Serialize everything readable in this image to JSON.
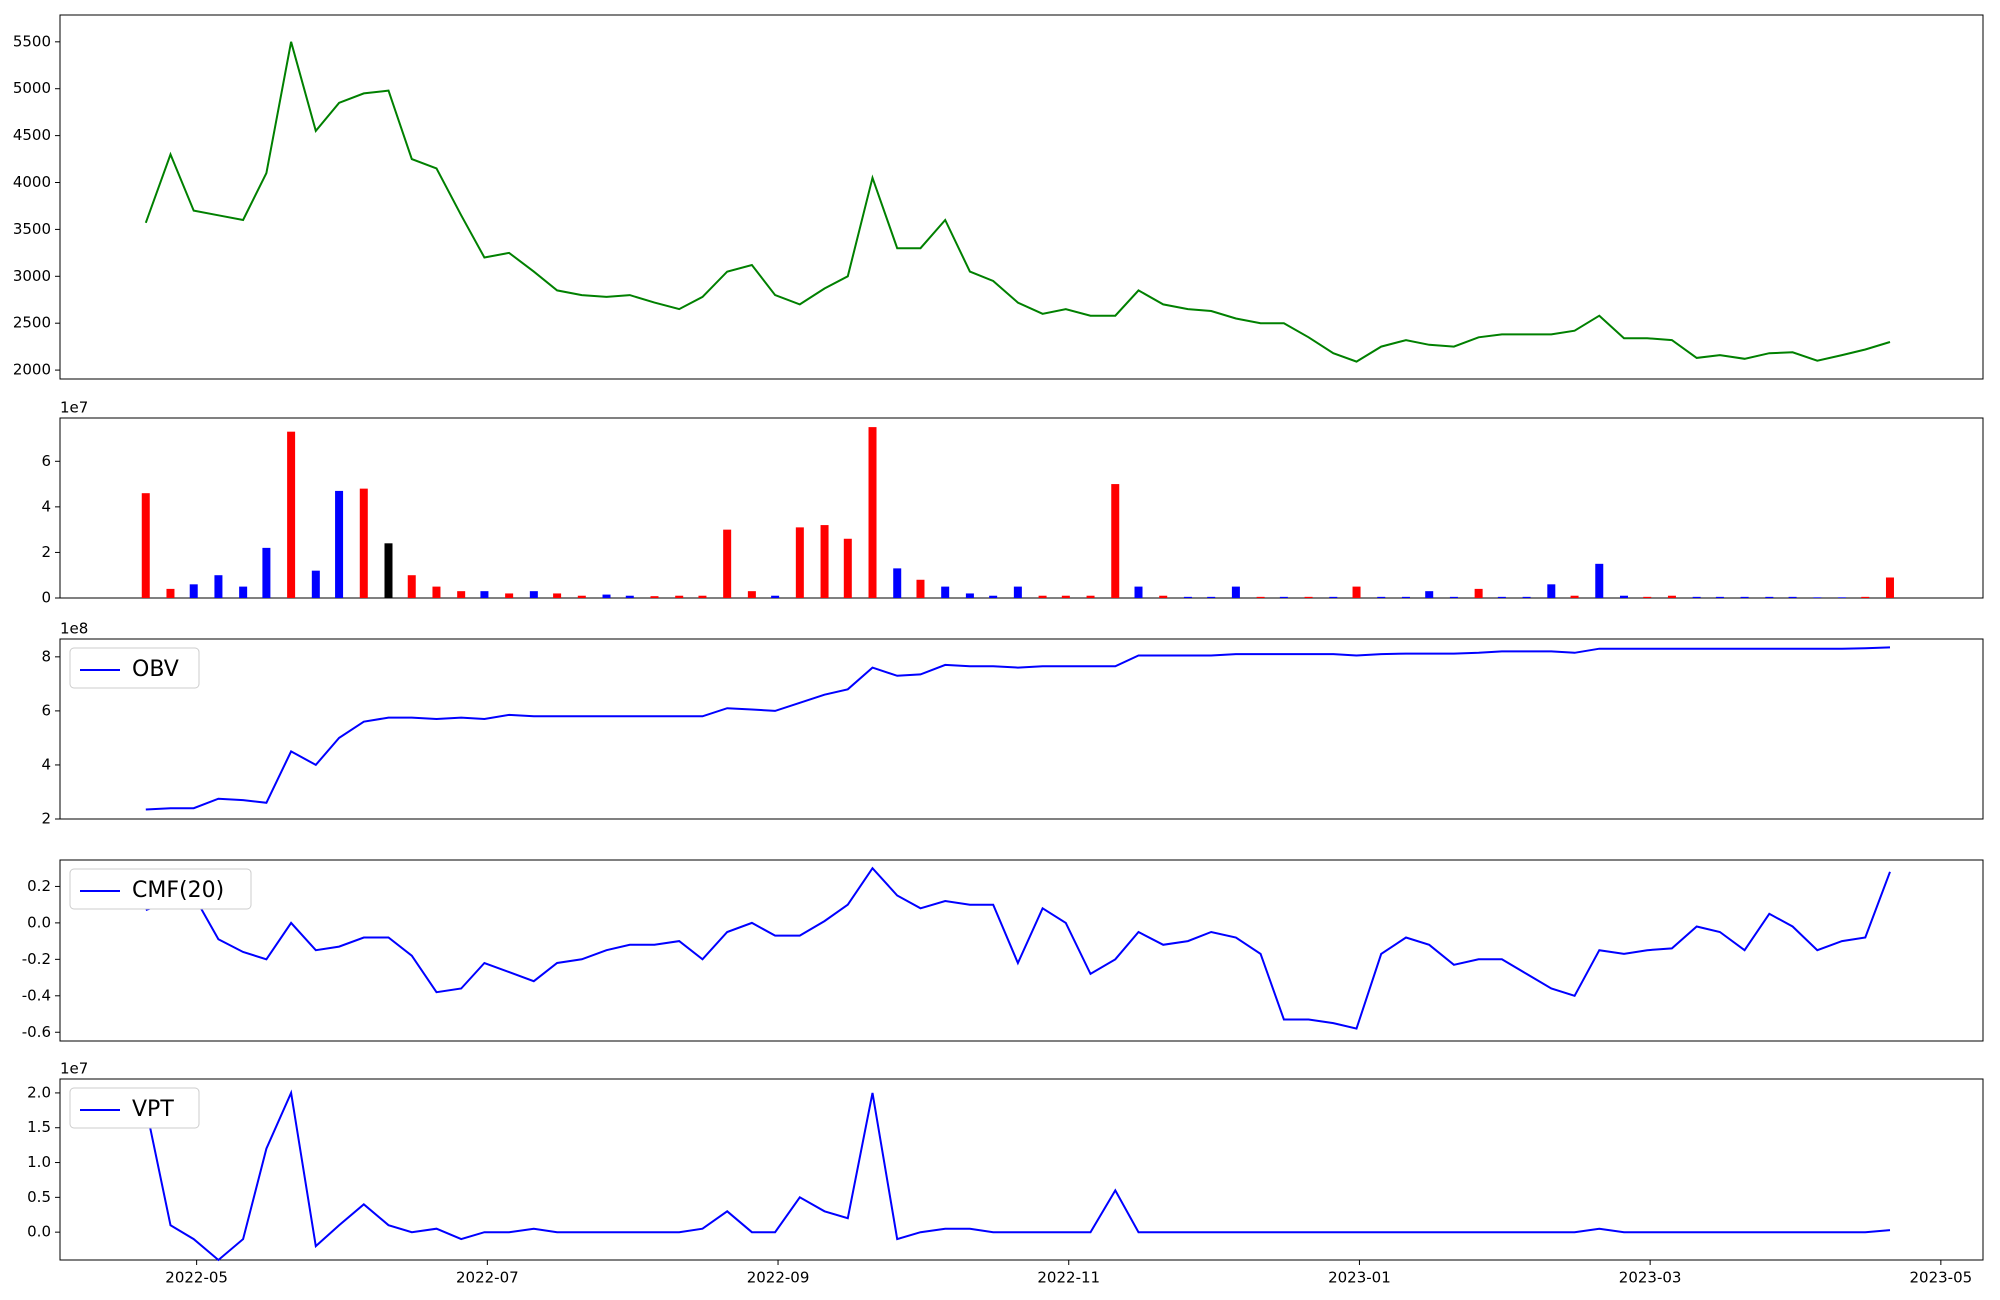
{
  "chart_data": [
    {
      "type": "line",
      "color": "#008000",
      "x": [
        0.65,
        0.82,
        0.98,
        1.15,
        1.32,
        1.48,
        1.65,
        1.82,
        1.98,
        2.15,
        2.32,
        2.48,
        2.65,
        2.82,
        2.98,
        3.15,
        3.32,
        3.48,
        3.65,
        3.82,
        3.98,
        4.15,
        4.32,
        4.48,
        4.65,
        4.82,
        4.98,
        5.15,
        5.32,
        5.48,
        5.65,
        5.82,
        5.98,
        6.15,
        6.32,
        6.48,
        6.65,
        6.82,
        6.98,
        7.15,
        7.32,
        7.48,
        7.65,
        7.82,
        7.98,
        8.15,
        8.32,
        8.48,
        8.65,
        8.82,
        8.98,
        9.15,
        9.32,
        9.48,
        9.65,
        9.82,
        9.98,
        10.15,
        10.32,
        10.48,
        10.65,
        10.82,
        10.98,
        11.15,
        11.32,
        11.48,
        11.65,
        11.82,
        11.98,
        12.15,
        12.32,
        12.48,
        12.65
      ],
      "values": [
        3570,
        4300,
        3700,
        3650,
        3600,
        4100,
        5500,
        4550,
        4850,
        4950,
        4980,
        4250,
        4150,
        3650,
        3200,
        3250,
        3050,
        2850,
        2800,
        2780,
        2800,
        2720,
        2650,
        2780,
        3050,
        3120,
        2800,
        2700,
        2870,
        3000,
        4050,
        3300,
        3300,
        3600,
        3050,
        2950,
        2720,
        2600,
        2650,
        2580,
        2580,
        2850,
        2700,
        2650,
        2630,
        2550,
        2500,
        2500,
        2350,
        2180,
        2090,
        2250,
        2320,
        2270,
        2250,
        2350,
        2380,
        2380,
        2380,
        2420,
        2580,
        2340,
        2340,
        2320,
        2130,
        2160,
        2120,
        2180,
        2190,
        2100,
        2160,
        2220,
        2300
      ],
      "xlim": [
        0.06,
        13.29
      ],
      "ylim": [
        1905,
        5786
      ],
      "yticks": [
        2000,
        2500,
        3000,
        3500,
        4000,
        4500,
        5000,
        5500
      ]
    },
    {
      "type": "bar",
      "y_offset_label": "1e7",
      "x": [
        0.65,
        0.82,
        0.98,
        1.15,
        1.32,
        1.48,
        1.65,
        1.82,
        1.98,
        2.15,
        2.32,
        2.48,
        2.65,
        2.82,
        2.98,
        3.15,
        3.32,
        3.48,
        3.65,
        3.82,
        3.98,
        4.15,
        4.32,
        4.48,
        4.65,
        4.82,
        4.98,
        5.15,
        5.32,
        5.48,
        5.65,
        5.82,
        5.98,
        6.15,
        6.32,
        6.48,
        6.65,
        6.82,
        6.98,
        7.15,
        7.32,
        7.48,
        7.65,
        7.82,
        7.98,
        8.15,
        8.32,
        8.48,
        8.65,
        8.82,
        8.98,
        9.15,
        9.32,
        9.48,
        9.65,
        9.82,
        9.98,
        10.15,
        10.32,
        10.48,
        10.65,
        10.82,
        10.98,
        11.15,
        11.32,
        11.48,
        11.65,
        11.82,
        11.98,
        12.15,
        12.32,
        12.48,
        12.65
      ],
      "values": [
        4.6,
        0.4,
        0.6,
        1.0,
        0.5,
        2.2,
        7.3,
        1.2,
        4.7,
        4.8,
        2.4,
        1.0,
        0.5,
        0.3,
        0.3,
        0.2,
        0.3,
        0.2,
        0.1,
        0.15,
        0.1,
        0.08,
        0.1,
        0.1,
        3.0,
        0.3,
        0.1,
        3.1,
        3.2,
        2.6,
        7.5,
        1.3,
        0.8,
        0.5,
        0.2,
        0.1,
        0.5,
        0.1,
        0.1,
        0.1,
        5.0,
        0.5,
        0.1,
        0.05,
        0.05,
        0.5,
        0.05,
        0.05,
        0.05,
        0.05,
        0.5,
        0.05,
        0.05,
        0.3,
        0.05,
        0.4,
        0.05,
        0.05,
        0.6,
        0.1,
        1.5,
        0.1,
        0.05,
        0.1,
        0.05,
        0.05,
        0.05,
        0.05,
        0.05,
        0.03,
        0.03,
        0.05,
        0.9
      ],
      "colors": [
        "#ff0000",
        "#ff0000",
        "#0000ff",
        "#0000ff",
        "#0000ff",
        "#0000ff",
        "#ff0000",
        "#0000ff",
        "#0000ff",
        "#ff0000",
        "#000000",
        "#ff0000",
        "#ff0000",
        "#ff0000",
        "#0000ff",
        "#ff0000",
        "#0000ff",
        "#ff0000",
        "#ff0000",
        "#0000ff",
        "#0000ff",
        "#ff0000",
        "#ff0000",
        "#ff0000",
        "#ff0000",
        "#ff0000",
        "#0000ff",
        "#ff0000",
        "#ff0000",
        "#ff0000",
        "#ff0000",
        "#0000ff",
        "#ff0000",
        "#0000ff",
        "#0000ff",
        "#0000ff",
        "#0000ff",
        "#ff0000",
        "#ff0000",
        "#ff0000",
        "#ff0000",
        "#0000ff",
        "#ff0000",
        "#0000ff",
        "#0000ff",
        "#0000ff",
        "#ff0000",
        "#0000ff",
        "#ff0000",
        "#0000ff",
        "#ff0000",
        "#0000ff",
        "#0000ff",
        "#0000ff",
        "#0000ff",
        "#ff0000",
        "#0000ff",
        "#0000ff",
        "#0000ff",
        "#ff0000",
        "#0000ff",
        "#0000ff",
        "#ff0000",
        "#ff0000",
        "#0000ff",
        "#0000ff",
        "#0000ff",
        "#0000ff",
        "#0000ff",
        "#0000ff",
        "#0000ff",
        "#ff0000",
        "#ff0000"
      ],
      "xlim": [
        0.06,
        13.29
      ],
      "ylim": [
        0,
        7.9
      ],
      "yticks": [
        0,
        2,
        4,
        6
      ]
    },
    {
      "type": "line",
      "y_offset_label": "1e8",
      "legend": "upper left",
      "x": [
        0.65,
        0.82,
        0.98,
        1.15,
        1.32,
        1.48,
        1.65,
        1.82,
        1.98,
        2.15,
        2.32,
        2.48,
        2.65,
        2.82,
        2.98,
        3.15,
        3.32,
        3.48,
        3.65,
        3.82,
        3.98,
        4.15,
        4.32,
        4.48,
        4.65,
        4.82,
        4.98,
        5.15,
        5.32,
        5.48,
        5.65,
        5.82,
        5.98,
        6.15,
        6.32,
        6.48,
        6.65,
        6.82,
        6.98,
        7.15,
        7.32,
        7.48,
        7.65,
        7.82,
        7.98,
        8.15,
        8.32,
        8.48,
        8.65,
        8.82,
        8.98,
        9.15,
        9.32,
        9.48,
        9.65,
        9.82,
        9.98,
        10.15,
        10.32,
        10.48,
        10.65,
        10.82,
        10.98,
        11.15,
        11.32,
        11.48,
        11.65,
        11.82,
        11.98,
        12.15,
        12.32,
        12.48,
        12.65
      ],
      "series": [
        {
          "name": "OBV",
          "color": "#0000ff",
          "values": [
            2.35,
            2.4,
            2.4,
            2.75,
            2.7,
            2.6,
            4.5,
            4.0,
            5.0,
            5.6,
            5.75,
            5.75,
            5.7,
            5.75,
            5.7,
            5.85,
            5.8,
            5.8,
            5.8,
            5.8,
            5.8,
            5.8,
            5.8,
            5.8,
            6.1,
            6.05,
            6.0,
            6.3,
            6.6,
            6.8,
            7.6,
            7.3,
            7.35,
            7.7,
            7.65,
            7.65,
            7.6,
            7.65,
            7.65,
            7.65,
            7.65,
            8.05,
            8.05,
            8.05,
            8.05,
            8.1,
            8.1,
            8.1,
            8.1,
            8.1,
            8.05,
            8.1,
            8.12,
            8.12,
            8.12,
            8.15,
            8.2,
            8.2,
            8.2,
            8.15,
            8.3,
            8.3,
            8.3,
            8.3,
            8.3,
            8.3,
            8.3,
            8.3,
            8.3,
            8.3,
            8.3,
            8.32,
            8.35
          ]
        }
      ],
      "xlim": [
        0.06,
        13.29
      ],
      "ylim": [
        2,
        8.66
      ],
      "yticks": [
        2,
        4,
        6,
        8
      ]
    },
    {
      "type": "line",
      "legend": "upper left",
      "x": [
        0.65,
        0.82,
        0.98,
        1.15,
        1.32,
        1.48,
        1.65,
        1.82,
        1.98,
        2.15,
        2.32,
        2.48,
        2.65,
        2.82,
        2.98,
        3.15,
        3.32,
        3.48,
        3.65,
        3.82,
        3.98,
        4.15,
        4.32,
        4.48,
        4.65,
        4.82,
        4.98,
        5.15,
        5.32,
        5.48,
        5.65,
        5.82,
        5.98,
        6.15,
        6.32,
        6.48,
        6.65,
        6.82,
        6.98,
        7.15,
        7.32,
        7.48,
        7.65,
        7.82,
        7.98,
        8.15,
        8.32,
        8.48,
        8.65,
        8.82,
        8.98,
        9.15,
        9.32,
        9.48,
        9.65,
        9.82,
        9.98,
        10.15,
        10.32,
        10.48,
        10.65,
        10.82,
        10.98,
        11.15,
        11.32,
        11.48,
        11.65,
        11.82,
        11.98,
        12.15,
        12.32,
        12.48,
        12.65
      ],
      "series": [
        {
          "name": "CMF(20)",
          "color": "#0000ff",
          "values": [
            0.07,
            0.12,
            0.15,
            -0.09,
            -0.16,
            -0.2,
            0.0,
            -0.15,
            -0.13,
            -0.08,
            -0.08,
            -0.18,
            -0.38,
            -0.36,
            -0.22,
            -0.27,
            -0.32,
            -0.22,
            -0.2,
            -0.15,
            -0.12,
            -0.12,
            -0.1,
            -0.2,
            -0.05,
            0.0,
            -0.07,
            -0.07,
            0.01,
            0.1,
            0.3,
            0.15,
            0.08,
            0.12,
            0.1,
            0.1,
            -0.22,
            0.08,
            0.0,
            -0.28,
            -0.2,
            -0.05,
            -0.12,
            -0.1,
            -0.05,
            -0.08,
            -0.17,
            -0.53,
            -0.53,
            -0.55,
            -0.58,
            -0.17,
            -0.08,
            -0.12,
            -0.23,
            -0.2,
            -0.2,
            -0.28,
            -0.36,
            -0.4,
            -0.15,
            -0.17,
            -0.15,
            -0.14,
            -0.02,
            -0.05,
            -0.15,
            0.05,
            -0.02,
            -0.15,
            -0.1,
            -0.08,
            0.28
          ]
        }
      ],
      "xlim": [
        0.06,
        13.29
      ],
      "ylim": [
        -0.648,
        0.345
      ],
      "yticks": [
        {
          "value": -0.6,
          "label": "-0.6"
        },
        {
          "value": -0.4,
          "label": "-0.4"
        },
        {
          "value": -0.2,
          "label": "-0.2"
        },
        {
          "value": 0,
          "label": "0.0"
        },
        {
          "value": 0.2,
          "label": "0.2"
        }
      ]
    },
    {
      "type": "line",
      "y_offset_label": "1e7",
      "legend": "upper left",
      "x": [
        0.65,
        0.82,
        0.98,
        1.15,
        1.32,
        1.48,
        1.65,
        1.82,
        1.98,
        2.15,
        2.32,
        2.48,
        2.65,
        2.82,
        2.98,
        3.15,
        3.32,
        3.48,
        3.65,
        3.82,
        3.98,
        4.15,
        4.32,
        4.48,
        4.65,
        4.82,
        4.98,
        5.15,
        5.32,
        5.48,
        5.65,
        5.82,
        5.98,
        6.15,
        6.32,
        6.48,
        6.65,
        6.82,
        6.98,
        7.15,
        7.32,
        7.48,
        7.65,
        7.82,
        7.98,
        8.15,
        8.32,
        8.48,
        8.65,
        8.82,
        8.98,
        9.15,
        9.32,
        9.48,
        9.65,
        9.82,
        9.98,
        10.15,
        10.32,
        10.48,
        10.65,
        10.82,
        10.98,
        11.15,
        11.32,
        11.48,
        11.65,
        11.82,
        11.98,
        12.15,
        12.32,
        12.48,
        12.65
      ],
      "series": [
        {
          "name": "VPT",
          "color": "#0000ff",
          "values": [
            1.8,
            0.1,
            -0.1,
            -0.4,
            -0.1,
            1.2,
            2.0,
            -0.2,
            0.1,
            0.4,
            0.1,
            0.0,
            0.05,
            -0.1,
            0.0,
            0.0,
            0.05,
            0.0,
            0.0,
            0.0,
            0.0,
            0.0,
            0.0,
            0.05,
            0.3,
            0.0,
            0.0,
            0.5,
            0.3,
            0.2,
            2.0,
            -0.1,
            0.0,
            0.05,
            0.05,
            0.0,
            0.0,
            0.0,
            0.0,
            0.0,
            0.6,
            0.0,
            0.0,
            0.0,
            0.0,
            0.0,
            0.0,
            0.0,
            0.0,
            0.0,
            0.0,
            0.0,
            0.0,
            0.0,
            0.0,
            0.0,
            0.0,
            0.0,
            0.0,
            0.0,
            0.05,
            0.0,
            0.0,
            0.0,
            0.0,
            0.0,
            0.0,
            0.0,
            0.0,
            0.0,
            0.0,
            0.0,
            0.03
          ]
        }
      ],
      "xlim": [
        0.06,
        13.29
      ],
      "ylim": [
        -0.4,
        2.2
      ],
      "yticks": [
        {
          "value": 0,
          "label": "0.0"
        },
        {
          "value": 0.5,
          "label": "0.5"
        },
        {
          "value": 1,
          "label": "1.0"
        },
        {
          "value": 1.5,
          "label": "1.5"
        },
        {
          "value": 2,
          "label": "2.0"
        }
      ],
      "xticks": [
        {
          "value": 1,
          "label": "2022-05"
        },
        {
          "value": 3,
          "label": "2022-07"
        },
        {
          "value": 5,
          "label": "2022-09"
        },
        {
          "value": 7,
          "label": "2022-11"
        },
        {
          "value": 9,
          "label": "2023-01"
        },
        {
          "value": 11,
          "label": "2023-03"
        },
        {
          "value": 13,
          "label": "2023-05"
        }
      ]
    }
  ]
}
